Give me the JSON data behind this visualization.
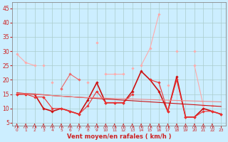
{
  "xlabel": "Vent moyen/en rafales ( km/h )",
  "x": [
    0,
    1,
    2,
    3,
    4,
    5,
    6,
    7,
    8,
    9,
    10,
    11,
    12,
    13,
    14,
    15,
    16,
    17,
    18,
    19,
    20,
    21,
    22,
    23
  ],
  "bg_color": "#cceeff",
  "grid_color": "#aacccc",
  "series": [
    {
      "color": "#ffaaaa",
      "linewidth": 0.8,
      "marker": "D",
      "markersize": 1.8,
      "values": [
        29,
        26,
        25,
        null,
        19,
        null,
        null,
        null,
        19,
        null,
        22,
        22,
        22,
        null,
        25,
        31,
        43,
        null,
        30,
        null,
        30,
        null,
        11,
        null
      ]
    },
    {
      "color": "#ffaaaa",
      "linewidth": 0.8,
      "marker": "D",
      "markersize": 1.8,
      "values": [
        null,
        null,
        null,
        25,
        null,
        17,
        null,
        null,
        null,
        33,
        null,
        null,
        null,
        24,
        null,
        null,
        null,
        18,
        null,
        null,
        25,
        11,
        null,
        null
      ]
    },
    {
      "color": "#ee6666",
      "linewidth": 0.8,
      "marker": "D",
      "markersize": 1.8,
      "values": [
        null,
        null,
        null,
        14,
        null,
        17,
        22,
        20,
        null,
        null,
        null,
        null,
        null,
        null,
        null,
        null,
        null,
        null,
        null,
        null,
        null,
        null,
        null,
        null
      ]
    },
    {
      "color": "#cc1111",
      "linewidth": 1.2,
      "marker": "D",
      "markersize": 1.8,
      "values": [
        15,
        15,
        15,
        10,
        9,
        10,
        9,
        8,
        13,
        19,
        12,
        12,
        12,
        16,
        23,
        20,
        16,
        9,
        21,
        7,
        7,
        10,
        9,
        8
      ]
    },
    {
      "color": "#ee3333",
      "linewidth": 0.8,
      "marker": "D",
      "markersize": 1.8,
      "values": [
        15,
        15,
        14,
        14,
        10,
        10,
        9,
        8,
        11,
        16,
        12,
        12,
        12,
        15,
        null,
        20,
        19,
        9,
        20,
        7,
        7,
        9,
        9,
        8
      ]
    },
    {
      "color": "#cc1111",
      "linewidth": 0.8,
      "marker": null,
      "markersize": 0,
      "values": [
        15.5,
        15.2,
        15.0,
        14.8,
        14.5,
        14.3,
        14.1,
        13.9,
        13.7,
        13.5,
        13.3,
        13.1,
        12.9,
        12.7,
        12.5,
        12.3,
        12.1,
        11.9,
        11.7,
        11.5,
        11.3,
        11.1,
        10.9,
        10.7
      ]
    },
    {
      "color": "#ee8888",
      "linewidth": 0.8,
      "marker": null,
      "markersize": 0,
      "values": [
        15.3,
        15.1,
        14.9,
        14.7,
        14.5,
        14.3,
        14.1,
        13.9,
        13.8,
        13.7,
        13.6,
        13.5,
        13.4,
        13.3,
        13.2,
        13.1,
        13.0,
        12.9,
        12.8,
        12.7,
        12.6,
        12.5,
        12.4,
        12.3
      ]
    }
  ],
  "yticks": [
    5,
    10,
    15,
    20,
    25,
    30,
    35,
    40,
    45
  ],
  "ylim": [
    4,
    47
  ],
  "xlim": [
    -0.5,
    23.5
  ],
  "tick_color": "#cc2222",
  "label_color": "#cc2222"
}
